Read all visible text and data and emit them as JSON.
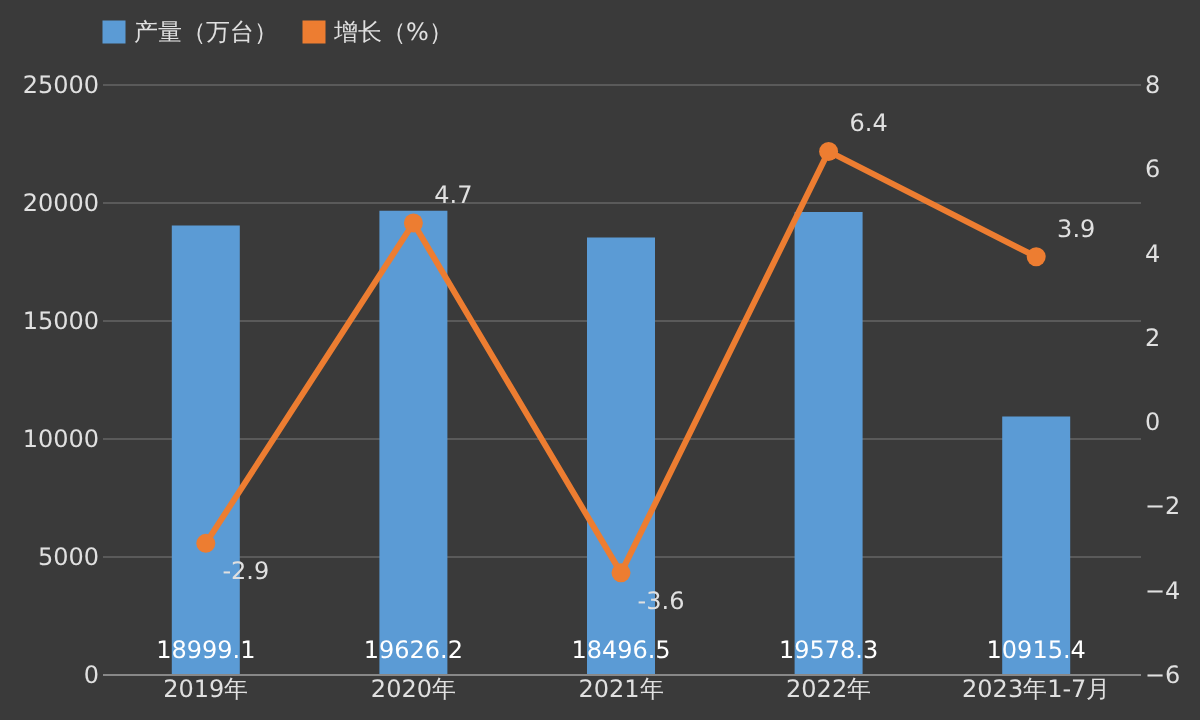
{
  "chart_data": {
    "type": "bar",
    "categories": [
      "2019年",
      "2020年",
      "2021年",
      "2022年",
      "2023年1-7月"
    ],
    "series": [
      {
        "name": "产量（万台）",
        "color": "#5b9bd5",
        "values": [
          18999.1,
          19626.2,
          18496.5,
          19578.3,
          10915.4
        ]
      },
      {
        "name": "增长（%）",
        "type": "line",
        "axis": "y2",
        "color": "#ed7d31",
        "values": [
          -2.9,
          4.7,
          -3.6,
          6.4,
          3.9
        ]
      }
    ],
    "ylim": [
      0,
      25000
    ],
    "yticks": [
      0,
      5000,
      10000,
      15000,
      20000,
      25000
    ],
    "y2lim": [
      -6,
      8
    ],
    "y2ticks": [
      -6,
      -4,
      -2,
      0,
      2,
      4,
      6,
      8
    ],
    "grid": "y",
    "legend": "top",
    "marker": "circle",
    "data_labels": true
  }
}
